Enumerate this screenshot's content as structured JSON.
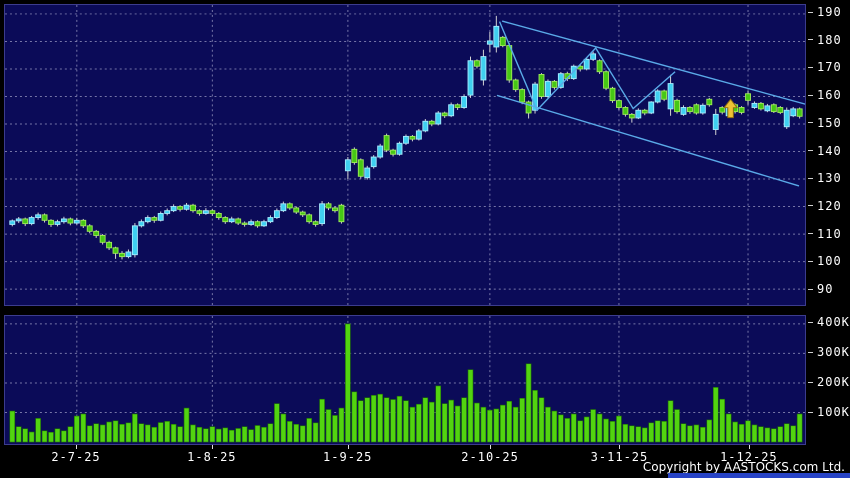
{
  "footer": {
    "copyright": "Copyright by AASTOCKS.com Ltd."
  },
  "colors": {
    "panel_bg": "#0b0b58",
    "grid": "#9a9ac2",
    "up_candle": "#3fd0f0",
    "up_candle_border": "#a8ecff",
    "down_candle": "#46c814",
    "down_candle_border": "#a2ea5c",
    "wick": "#d4d4d4",
    "volume_bar": "#52d410",
    "volume_bar_border": "#1e6e06",
    "trendline": "#5aaaе8",
    "trendline_blue": "#5aaae8",
    "arrow_fill": "#eec235",
    "arrow_border": "#8a6a10",
    "axis_text": "#ffffff",
    "accent_bar": "#2743c6"
  },
  "chart_data": {
    "type": "candlestick_with_volume",
    "price_axis": {
      "min": 90,
      "max": 190,
      "step": 10,
      "tick_values": [
        190,
        180,
        170,
        160,
        150,
        140,
        130,
        120,
        110,
        100,
        90
      ],
      "side": "right"
    },
    "volume_axis": {
      "tick_values": [
        400,
        300,
        200,
        100
      ],
      "unit": "K",
      "tick_labels": [
        "400K",
        "300K",
        "200K",
        "100K"
      ],
      "side": "right"
    },
    "x_ticks": [
      {
        "index": 10,
        "label": "2-7-25"
      },
      {
        "index": 31,
        "label": "1-8-25"
      },
      {
        "index": 52,
        "label": "1-9-25"
      },
      {
        "index": 74,
        "label": "2-10-25"
      },
      {
        "index": 94,
        "label": "3-11-25"
      },
      {
        "index": 114,
        "label": "1-12-25"
      }
    ],
    "grid": {
      "horizontal": true,
      "vertical_at_month_ticks": true,
      "style": "dashed"
    },
    "candles_format": [
      "open",
      "high",
      "low",
      "close",
      "volume_K"
    ],
    "candles": [
      [
        113.5,
        115.3,
        112.8,
        114.8,
        105
      ],
      [
        114.8,
        116.2,
        114.0,
        115.5,
        52
      ],
      [
        115.5,
        116.0,
        112.9,
        113.8,
        45
      ],
      [
        113.8,
        116.6,
        113.2,
        116.0,
        34
      ],
      [
        116.0,
        117.8,
        115.2,
        117.0,
        80
      ],
      [
        117.0,
        117.5,
        114.2,
        115.0,
        38
      ],
      [
        115.0,
        115.4,
        112.6,
        113.5,
        33
      ],
      [
        113.5,
        115.2,
        112.8,
        114.5,
        45
      ],
      [
        114.5,
        116.3,
        113.8,
        115.5,
        38
      ],
      [
        115.5,
        116.0,
        113.2,
        114.0,
        52
      ],
      [
        114.0,
        115.9,
        113.4,
        115.0,
        88
      ],
      [
        115.0,
        115.5,
        112.2,
        113.0,
        95
      ],
      [
        113.0,
        113.6,
        110.3,
        111.0,
        55
      ],
      [
        111.0,
        111.5,
        108.6,
        109.5,
        62
      ],
      [
        109.5,
        110.0,
        106.2,
        107.0,
        58
      ],
      [
        107.0,
        107.6,
        104.2,
        105.0,
        68
      ],
      [
        105.0,
        105.4,
        101.0,
        103.0,
        72
      ],
      [
        103.0,
        103.8,
        100.8,
        101.8,
        60
      ],
      [
        101.8,
        104.4,
        101.2,
        103.5,
        65
      ],
      [
        102.5,
        114.0,
        101.5,
        113.0,
        95
      ],
      [
        113.0,
        115.3,
        112.4,
        114.5,
        62
      ],
      [
        114.5,
        116.8,
        113.9,
        116.0,
        58
      ],
      [
        116.0,
        116.6,
        114.1,
        115.0,
        50
      ],
      [
        115.0,
        118.2,
        114.6,
        117.5,
        66
      ],
      [
        117.5,
        119.3,
        116.8,
        118.5,
        70
      ],
      [
        118.5,
        120.8,
        118.0,
        120.0,
        60
      ],
      [
        120.0,
        120.5,
        118.2,
        119.0,
        52
      ],
      [
        119.0,
        121.3,
        118.5,
        120.5,
        115
      ],
      [
        120.5,
        121.0,
        117.8,
        118.5,
        58
      ],
      [
        118.5,
        119.0,
        116.7,
        117.5,
        50
      ],
      [
        117.5,
        119.4,
        117.0,
        118.5,
        45
      ],
      [
        118.5,
        119.0,
        116.6,
        117.5,
        52
      ],
      [
        117.5,
        118.0,
        115.2,
        116.0,
        44
      ],
      [
        116.0,
        116.5,
        113.7,
        114.5,
        48
      ],
      [
        114.5,
        116.3,
        114.0,
        115.5,
        40
      ],
      [
        115.5,
        116.0,
        113.3,
        114.0,
        46
      ],
      [
        114.0,
        114.6,
        112.7,
        113.5,
        52
      ],
      [
        113.5,
        115.3,
        113.0,
        114.5,
        42
      ],
      [
        114.5,
        115.0,
        112.3,
        113.0,
        56
      ],
      [
        113.0,
        115.2,
        112.6,
        114.5,
        50
      ],
      [
        114.5,
        116.8,
        114.0,
        116.0,
        62
      ],
      [
        116.0,
        119.3,
        115.5,
        118.5,
        130
      ],
      [
        118.5,
        121.8,
        118.0,
        121.0,
        95
      ],
      [
        121.0,
        121.5,
        118.8,
        119.5,
        70
      ],
      [
        119.5,
        120.0,
        117.3,
        118.0,
        60
      ],
      [
        118.0,
        118.5,
        116.2,
        117.0,
        55
      ],
      [
        117.0,
        117.5,
        113.8,
        114.5,
        80
      ],
      [
        114.5,
        115.0,
        112.7,
        113.5,
        65
      ],
      [
        113.8,
        122.0,
        113.0,
        121.0,
        145
      ],
      [
        121.0,
        121.6,
        118.7,
        119.5,
        110
      ],
      [
        119.5,
        120.0,
        117.8,
        118.5,
        90
      ],
      [
        120.5,
        121.0,
        113.8,
        114.5,
        115
      ],
      [
        133.0,
        138.0,
        130.0,
        137.0,
        400
      ],
      [
        140.8,
        141.5,
        135.2,
        136.0,
        170
      ],
      [
        137.0,
        137.5,
        130.2,
        131.0,
        140
      ],
      [
        130.5,
        134.8,
        129.8,
        134.0,
        150
      ],
      [
        134.5,
        138.7,
        133.8,
        138.0,
        158
      ],
      [
        138.0,
        142.8,
        137.4,
        142.0,
        162
      ],
      [
        145.8,
        146.5,
        139.8,
        140.5,
        150
      ],
      [
        140.5,
        141.0,
        138.2,
        139.0,
        144
      ],
      [
        139.0,
        143.6,
        138.5,
        143.0,
        155
      ],
      [
        143.0,
        146.2,
        142.4,
        145.5,
        140
      ],
      [
        145.5,
        146.0,
        143.7,
        144.5,
        118
      ],
      [
        144.5,
        148.2,
        144.0,
        147.5,
        128
      ],
      [
        147.5,
        151.8,
        147.0,
        151.0,
        150
      ],
      [
        151.0,
        151.5,
        149.2,
        150.0,
        135
      ],
      [
        150.0,
        154.7,
        149.5,
        154.0,
        190
      ],
      [
        154.0,
        154.5,
        152.2,
        153.0,
        130
      ],
      [
        153.0,
        157.8,
        152.5,
        157.0,
        142
      ],
      [
        157.0,
        157.5,
        155.1,
        156.0,
        122
      ],
      [
        156.0,
        160.8,
        155.5,
        160.0,
        150
      ],
      [
        160.5,
        174.5,
        159.5,
        173.0,
        245
      ],
      [
        173.0,
        173.5,
        170.2,
        171.0,
        132
      ],
      [
        166.0,
        177.0,
        164.0,
        174.5,
        118
      ],
      [
        179.0,
        183.5,
        176.0,
        180.2,
        108
      ],
      [
        178.0,
        189.3,
        176.0,
        185.5,
        112
      ],
      [
        181.5,
        182.0,
        177.9,
        178.5,
        125
      ],
      [
        178.5,
        179.5,
        165.0,
        166.0,
        138
      ],
      [
        166.0,
        166.5,
        161.7,
        162.5,
        118
      ],
      [
        162.5,
        163.0,
        157.2,
        158.0,
        148
      ],
      [
        158.0,
        158.5,
        152.0,
        154.0,
        265
      ],
      [
        155.0,
        165.3,
        153.8,
        164.5,
        175
      ],
      [
        168.0,
        168.5,
        159.2,
        160.0,
        150
      ],
      [
        160.0,
        166.2,
        159.5,
        165.5,
        118
      ],
      [
        165.5,
        166.0,
        162.5,
        163.3,
        105
      ],
      [
        163.3,
        168.9,
        162.8,
        168.3,
        92
      ],
      [
        168.3,
        169.0,
        165.6,
        166.5,
        80
      ],
      [
        166.5,
        171.6,
        166.0,
        171.0,
        95
      ],
      [
        171.0,
        171.5,
        169.1,
        170.0,
        72
      ],
      [
        170.0,
        174.2,
        169.5,
        173.5,
        85
      ],
      [
        173.5,
        176.3,
        172.9,
        175.5,
        110
      ],
      [
        173.0,
        173.5,
        168.2,
        169.0,
        95
      ],
      [
        169.0,
        169.5,
        162.3,
        163.0,
        78
      ],
      [
        163.0,
        163.5,
        157.7,
        158.5,
        70
      ],
      [
        158.5,
        159.0,
        155.2,
        156.0,
        88
      ],
      [
        156.0,
        156.5,
        152.7,
        153.5,
        60
      ],
      [
        153.5,
        154.0,
        150.5,
        152.2,
        55
      ],
      [
        152.2,
        155.7,
        151.8,
        155.0,
        52
      ],
      [
        155.0,
        155.5,
        153.2,
        154.0,
        48
      ],
      [
        154.0,
        158.3,
        153.6,
        158.0,
        65
      ],
      [
        158.0,
        162.6,
        157.5,
        162.0,
        72
      ],
      [
        162.0,
        162.5,
        158.3,
        159.0,
        70
      ],
      [
        155.5,
        167.9,
        153.0,
        164.7,
        140
      ],
      [
        158.6,
        159.2,
        153.8,
        154.5,
        110
      ],
      [
        153.5,
        156.8,
        153.0,
        156.0,
        62
      ],
      [
        156.0,
        156.5,
        153.7,
        154.5,
        55
      ],
      [
        157.0,
        157.5,
        153.4,
        154.0,
        58
      ],
      [
        154.0,
        157.5,
        153.4,
        156.8,
        50
      ],
      [
        159.0,
        159.5,
        156.3,
        157.0,
        75
      ],
      [
        148.0,
        155.5,
        146.0,
        153.5,
        185
      ],
      [
        156.0,
        156.5,
        153.5,
        154.3,
        145
      ],
      [
        153.0,
        156.5,
        152.3,
        155.8,
        95
      ],
      [
        157.0,
        157.5,
        153.8,
        154.5,
        68
      ],
      [
        156.0,
        156.5,
        153.5,
        154.2,
        60
      ],
      [
        161.0,
        162.0,
        157.0,
        158.6,
        72
      ],
      [
        156.0,
        158.2,
        155.5,
        157.5,
        58
      ],
      [
        157.5,
        158.0,
        154.9,
        155.5,
        52
      ],
      [
        154.8,
        157.3,
        154.3,
        156.6,
        48
      ],
      [
        157.0,
        157.5,
        154.0,
        154.5,
        45
      ],
      [
        156.0,
        156.5,
        153.6,
        154.2,
        52
      ],
      [
        149.0,
        156.0,
        148.2,
        155.0,
        62
      ],
      [
        153.0,
        156.2,
        152.5,
        155.5,
        55
      ],
      [
        155.5,
        156.0,
        152.0,
        152.8,
        95
      ]
    ],
    "annotations": {
      "upper_trendline": [
        {
          "i": 75.9,
          "p": 187.4
        },
        {
          "i": 123.2,
          "p": 157.0
        }
      ],
      "lower_trendline": [
        {
          "i": 75.1,
          "p": 160.4
        },
        {
          "i": 121.9,
          "p": 127.5
        }
      ],
      "zigzag": [
        {
          "i": 75.5,
          "p": 187.2
        },
        {
          "i": 81.3,
          "p": 155.0
        },
        {
          "i": 90.4,
          "p": 177.6
        },
        {
          "i": 96.2,
          "p": 155.6
        },
        {
          "i": 102.7,
          "p": 169.0
        }
      ],
      "arrow_marker": {
        "i": 111.3,
        "price_tip": 159.0,
        "price_base": 152.3,
        "direction": "up"
      }
    }
  }
}
